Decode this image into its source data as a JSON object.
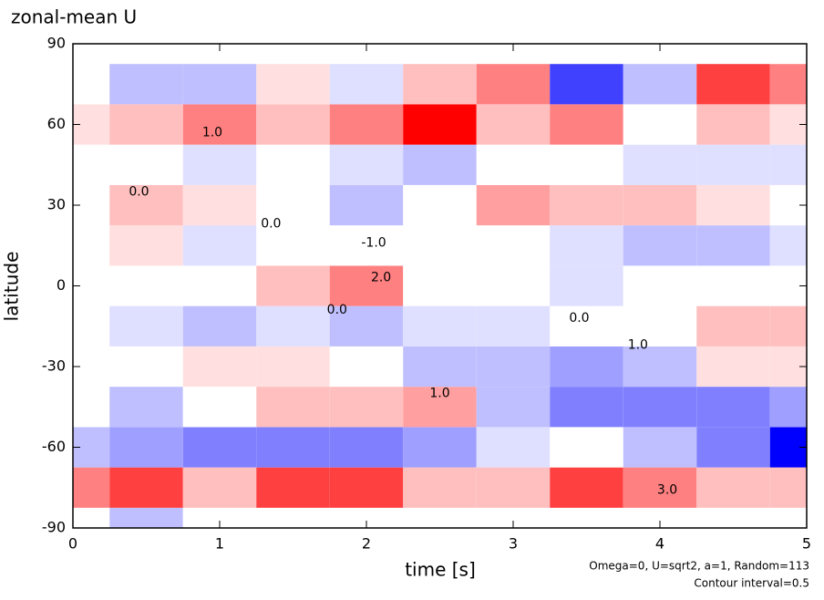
{
  "chart_data": {
    "type": "contour",
    "title": "zonal-mean U",
    "x_label": "time [s]",
    "y_label": "latitude",
    "notes": [
      "Omega=0, U=sqrt2, a=1, Random=113",
      "Contour interval=0.5"
    ],
    "x": [
      0,
      0.5,
      1,
      1.5,
      2,
      2.5,
      3,
      3.5,
      4,
      4.5,
      5
    ],
    "y": [
      -90,
      -75,
      -60,
      -45,
      -30,
      -15,
      0,
      15,
      30,
      45,
      60,
      75,
      90
    ],
    "z": [
      [
        0,
        -1,
        0,
        0,
        0,
        0,
        0,
        0,
        0,
        0,
        0
      ],
      [
        2,
        3,
        1,
        3,
        3,
        1,
        1,
        3,
        2,
        1,
        1
      ],
      [
        -1,
        -1.5,
        -2,
        -2,
        -2,
        -1.5,
        -0.5,
        0,
        -1,
        -2,
        -4
      ],
      [
        0,
        -1,
        0,
        1,
        1,
        1.5,
        -1,
        -2,
        -2,
        -2,
        -1.5
      ],
      [
        0,
        0,
        0.5,
        0.5,
        0,
        -1,
        -1,
        -1.5,
        -1,
        0.5,
        0.5
      ],
      [
        0,
        -0.5,
        -1,
        -0.5,
        -1,
        -0.5,
        -0.5,
        0,
        0,
        1,
        1
      ],
      [
        0,
        0,
        0,
        1,
        2,
        0,
        0,
        -0.5,
        0,
        0,
        0
      ],
      [
        0,
        0.5,
        -0.5,
        0,
        0,
        0,
        0,
        -0.5,
        -1,
        -1,
        -0.5
      ],
      [
        0,
        1,
        0.5,
        0,
        -1,
        0,
        1.5,
        1,
        1,
        0.5,
        0
      ],
      [
        0,
        0,
        -0.5,
        0,
        -0.5,
        -1,
        0,
        0,
        -0.5,
        -0.5,
        -0.5
      ],
      [
        0.5,
        1,
        2,
        1,
        2,
        4,
        1,
        2,
        0,
        1,
        0.5
      ],
      [
        0,
        -1,
        -1,
        0.5,
        -0.5,
        1,
        2,
        -3,
        -1,
        3,
        2
      ],
      [
        0,
        0,
        0,
        0,
        0,
        0,
        0,
        0,
        0,
        0,
        0
      ]
    ],
    "contour_labels": [
      {
        "x": 0.95,
        "y": 57,
        "label": "1.0"
      },
      {
        "x": 0.45,
        "y": 35,
        "label": "0.0"
      },
      {
        "x": 1.35,
        "y": 23,
        "label": "0.0"
      },
      {
        "x": 2.05,
        "y": 16,
        "label": "-1.0"
      },
      {
        "x": 2.1,
        "y": 3,
        "label": "2.0"
      },
      {
        "x": 1.8,
        "y": -9,
        "label": "0.0"
      },
      {
        "x": 2.5,
        "y": -40,
        "label": "1.0"
      },
      {
        "x": 3.85,
        "y": -22,
        "label": "1.0"
      },
      {
        "x": 3.45,
        "y": -12,
        "label": "0.0"
      },
      {
        "x": 4.05,
        "y": -76,
        "label": "3.0"
      }
    ],
    "xlim": [
      0,
      5
    ],
    "xticks": [
      0,
      1,
      2,
      3,
      4,
      5
    ],
    "ylim": [
      -90,
      90
    ],
    "yticks": [
      -90,
      -60,
      -30,
      0,
      30,
      60,
      90
    ],
    "colors": {
      "negative": "#0000ff",
      "positive": "#ff0000"
    }
  }
}
